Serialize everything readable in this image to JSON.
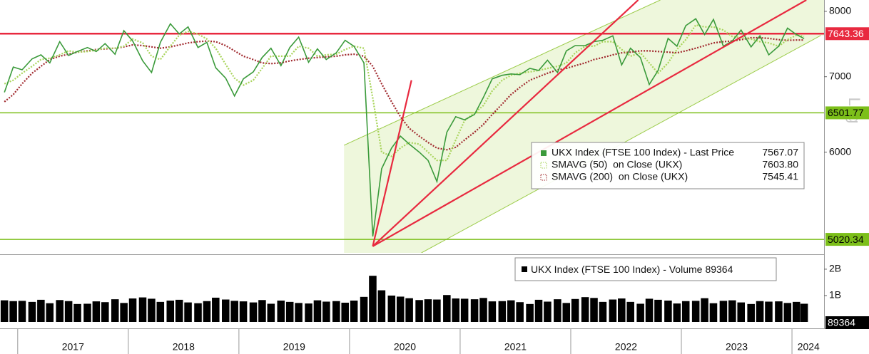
{
  "chart_data": {
    "type": "line",
    "log": true,
    "scale_label": "Log",
    "x": [
      2016.88,
      2016.96,
      2017.04,
      2017.13,
      2017.21,
      2017.29,
      2017.38,
      2017.46,
      2017.54,
      2017.63,
      2017.71,
      2017.79,
      2017.88,
      2017.96,
      2018.04,
      2018.13,
      2018.21,
      2018.29,
      2018.38,
      2018.46,
      2018.54,
      2018.63,
      2018.71,
      2018.79,
      2018.88,
      2018.96,
      2019.04,
      2019.13,
      2019.21,
      2019.29,
      2019.38,
      2019.46,
      2019.54,
      2019.63,
      2019.71,
      2019.79,
      2019.88,
      2019.96,
      2020.04,
      2020.13,
      2020.21,
      2020.29,
      2020.38,
      2020.46,
      2020.54,
      2020.63,
      2020.71,
      2020.79,
      2020.88,
      2020.96,
      2021.04,
      2021.13,
      2021.21,
      2021.29,
      2021.38,
      2021.46,
      2021.54,
      2021.63,
      2021.71,
      2021.79,
      2021.88,
      2021.96,
      2022.04,
      2022.13,
      2022.21,
      2022.29,
      2022.38,
      2022.46,
      2022.54,
      2022.63,
      2022.71,
      2022.79,
      2022.88,
      2022.96,
      2023.04,
      2023.13,
      2023.21,
      2023.29,
      2023.38,
      2023.46,
      2023.54,
      2023.63,
      2023.71,
      2023.79,
      2023.88,
      2023.96,
      2024.04,
      2024.11
    ],
    "xlim": [
      2016.84,
      2024.29
    ],
    "xticks": [
      {
        "value": 2017.5,
        "label": "2017"
      },
      {
        "value": 2018.5,
        "label": "2018"
      },
      {
        "value": 2019.5,
        "label": "2019"
      },
      {
        "value": 2020.5,
        "label": "2020"
      },
      {
        "value": 2021.5,
        "label": "2021"
      },
      {
        "value": 2022.5,
        "label": "2022"
      },
      {
        "value": 2023.5,
        "label": "2023"
      },
      {
        "value": 2024.15,
        "label": "2024"
      }
    ],
    "xminorticks": [
      2017,
      2018,
      2019,
      2020,
      2021,
      2022,
      2023,
      2024
    ],
    "ylim": [
      4884,
      8188
    ],
    "yticks": [
      6000,
      7000,
      8000
    ],
    "series": [
      {
        "name": "UKX Index (FTSE 100 Index) - Last Price",
        "legend_value": "7567.07",
        "color": "#3a9a3a",
        "style": "solid",
        "values": [
          6780,
          7140,
          7100,
          7260,
          7320,
          7200,
          7520,
          7310,
          7370,
          7430,
          7370,
          7490,
          7330,
          7690,
          7530,
          7230,
          7060,
          7510,
          7800,
          7640,
          7750,
          7430,
          7510,
          7130,
          6980,
          6730,
          6970,
          7070,
          7280,
          7420,
          7160,
          7430,
          7590,
          7210,
          7410,
          7250,
          7350,
          7540,
          7450,
          7200,
          5050,
          5800,
          6050,
          6200,
          6100,
          6000,
          5900,
          5650,
          6250,
          6450,
          6410,
          6480,
          6710,
          6970,
          7020,
          7040,
          7030,
          7120,
          7090,
          7240,
          7060,
          7380,
          7460,
          7460,
          7520,
          7540,
          7610,
          7170,
          7420,
          7280,
          6890,
          7090,
          7570,
          7450,
          7770,
          7880,
          7630,
          7870,
          7450,
          7530,
          7700,
          7440,
          7610,
          7320,
          7450,
          7730,
          7630,
          7567.07
        ]
      },
      {
        "name": "SMAVG (50)  on Close (UKX)",
        "legend_value": "7603.80",
        "color": "#a8d45a",
        "style": "dotted",
        "values": [
          6900,
          6950,
          7050,
          7150,
          7250,
          7270,
          7320,
          7380,
          7360,
          7370,
          7390,
          7420,
          7420,
          7450,
          7560,
          7500,
          7300,
          7250,
          7450,
          7620,
          7680,
          7640,
          7560,
          7420,
          7180,
          6980,
          6880,
          6950,
          7120,
          7300,
          7300,
          7300,
          7450,
          7420,
          7300,
          7320,
          7330,
          7400,
          7450,
          7420,
          6700,
          6000,
          5950,
          6050,
          6120,
          6100,
          6000,
          5900,
          5900,
          6150,
          6400,
          6500,
          6600,
          6800,
          6950,
          7020,
          7050,
          7070,
          7090,
          7120,
          7150,
          7200,
          7350,
          7450,
          7450,
          7520,
          7520,
          7400,
          7300,
          7350,
          7200,
          7050,
          7200,
          7400,
          7550,
          7780,
          7750,
          7750,
          7700,
          7600,
          7580,
          7560,
          7520,
          7500,
          7450,
          7550,
          7620,
          7603.8
        ]
      },
      {
        "name": "SMAVG (200)  on Close (UKX)",
        "legend_value": "7545.41",
        "color": "#a0282d",
        "style": "dotted",
        "values": [
          6650,
          6750,
          6900,
          7050,
          7150,
          7250,
          7300,
          7330,
          7360,
          7380,
          7400,
          7410,
          7420,
          7440,
          7470,
          7460,
          7440,
          7420,
          7440,
          7470,
          7500,
          7520,
          7530,
          7520,
          7460,
          7380,
          7300,
          7250,
          7200,
          7190,
          7200,
          7230,
          7250,
          7270,
          7280,
          7290,
          7300,
          7320,
          7330,
          7300,
          7150,
          6900,
          6650,
          6450,
          6300,
          6200,
          6120,
          6050,
          6030,
          6060,
          6150,
          6250,
          6350,
          6480,
          6620,
          6750,
          6850,
          6950,
          7000,
          7050,
          7100,
          7120,
          7160,
          7200,
          7250,
          7280,
          7320,
          7350,
          7360,
          7380,
          7380,
          7370,
          7360,
          7350,
          7380,
          7420,
          7460,
          7500,
          7520,
          7530,
          7550,
          7580,
          7580,
          7570,
          7550,
          7540,
          7545,
          7545.41
        ]
      }
    ],
    "levels": [
      {
        "value": 7643.36,
        "label": "7643.36",
        "color": "#e8293f",
        "text_color": "#ffffff"
      },
      {
        "value": 6501.77,
        "label": "6501.77",
        "color": "#7cbf1a",
        "text_color": "#000000"
      },
      {
        "value": 5020.34,
        "label": "5020.34",
        "color": "#7cbf1a",
        "text_color": "#000000"
      }
    ],
    "trendlines": [
      {
        "x": [
          2020.21,
          2020.56
        ],
        "y": [
          4950,
          6950
        ],
        "color": "#e8293f"
      },
      {
        "x": [
          2020.21,
          2022.61
        ],
        "y": [
          4950,
          8188
        ],
        "color": "#e8293f"
      },
      {
        "x": [
          2020.21,
          2024.13
        ],
        "y": [
          4950,
          8188
        ],
        "color": "#e8293f"
      }
    ],
    "channel": {
      "color": "#eaf5d3",
      "edge": "#9ccc4a",
      "upper": {
        "x": [
          2019.95,
          2022.81
        ],
        "y": [
          6085,
          8188
        ]
      },
      "lower": {
        "x": [
          2020.65,
          2024.26
        ],
        "y": [
          4884,
          7615
        ]
      }
    },
    "volume": {
      "name": "UKX Index (FTSE 100 Index) - Volume",
      "last": 89364,
      "color": "#000000",
      "ylim": [
        0,
        2430000000
      ],
      "yticks": [
        {
          "value": 1000000000,
          "label": "1B"
        },
        {
          "value": 2000000000,
          "label": "2B"
        }
      ],
      "values": [
        820000000.0,
        790000000.0,
        800000000.0,
        760000000.0,
        840000000.0,
        710000000.0,
        830000000.0,
        790000000.0,
        680000000.0,
        690000000.0,
        780000000.0,
        750000000.0,
        860000000.0,
        720000000.0,
        890000000.0,
        930000000.0,
        880000000.0,
        760000000.0,
        810000000.0,
        840000000.0,
        740000000.0,
        710000000.0,
        790000000.0,
        920000000.0,
        850000000.0,
        800000000.0,
        780000000.0,
        740000000.0,
        830000000.0,
        690000000.0,
        810000000.0,
        760000000.0,
        720000000.0,
        700000000.0,
        820000000.0,
        770000000.0,
        790000000.0,
        730000000.0,
        810000000.0,
        950000000.0,
        1750000000.0,
        1200000000.0,
        1000000000.0,
        960000000.0,
        900000000.0,
        830000000.0,
        860000000.0,
        850000000.0,
        1020000000.0,
        890000000.0,
        880000000.0,
        860000000.0,
        910000000.0,
        780000000.0,
        790000000.0,
        820000000.0,
        750000000.0,
        680000000.0,
        840000000.0,
        770000000.0,
        860000000.0,
        720000000.0,
        870000000.0,
        940000000.0,
        910000000.0,
        760000000.0,
        850000000.0,
        890000000.0,
        760000000.0,
        690000000.0,
        880000000.0,
        840000000.0,
        810000000.0,
        700000000.0,
        790000000.0,
        800000000.0,
        900000000.0,
        710000000.0,
        800000000.0,
        820000000.0,
        740000000.0,
        680000000.0,
        790000000.0,
        770000000.0,
        780000000.0,
        720000000.0,
        760000000.0,
        690000000.0
      ]
    }
  }
}
